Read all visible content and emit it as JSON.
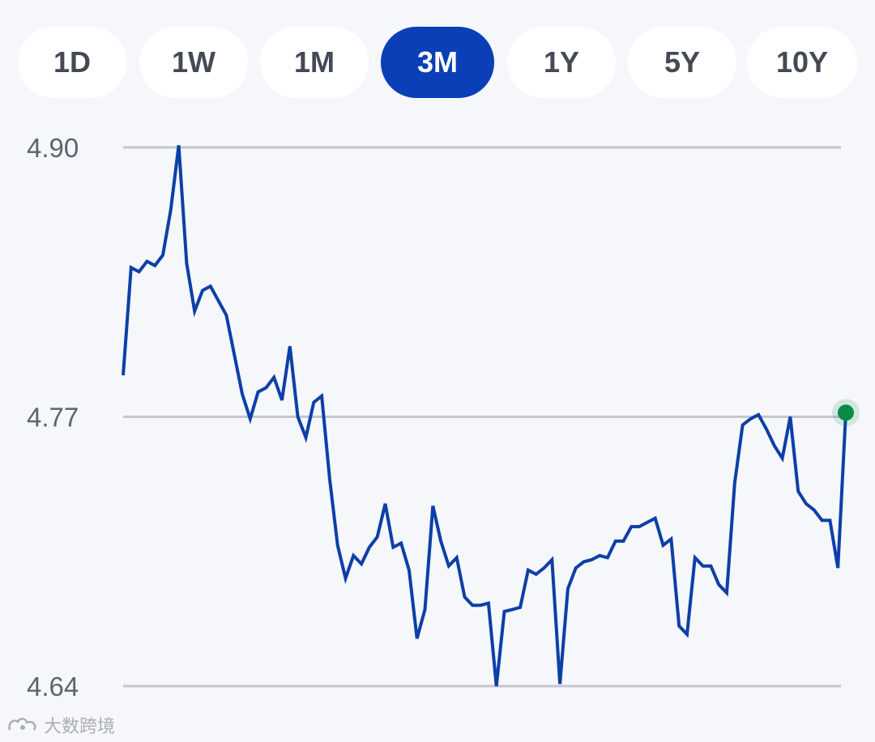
{
  "range_tabs": [
    {
      "label": "1D",
      "active": false
    },
    {
      "label": "1W",
      "active": false
    },
    {
      "label": "1M",
      "active": false
    },
    {
      "label": "3M",
      "active": true
    },
    {
      "label": "1Y",
      "active": false
    },
    {
      "label": "5Y",
      "active": false
    },
    {
      "label": "10Y",
      "active": false
    }
  ],
  "colors": {
    "accent": "#0a3fb8",
    "line": "#0d3fa8",
    "current_dot": "#0b8a4a",
    "gridline": "#c4c7cc",
    "background": "#f5f7fa"
  },
  "chart_data": {
    "type": "line",
    "title": "",
    "xlabel": "",
    "ylabel": "",
    "ylim": [
      4.64,
      4.9
    ],
    "yticks": [
      "4.90",
      "4.77",
      "4.64"
    ],
    "grid": true,
    "last_point_marker": true,
    "values": [
      4.79,
      4.842,
      4.84,
      4.845,
      4.843,
      4.848,
      4.87,
      4.901,
      4.844,
      4.821,
      4.831,
      4.833,
      4.826,
      4.819,
      4.8,
      4.781,
      4.769,
      4.782,
      4.784,
      4.789,
      4.778,
      4.804,
      4.77,
      4.76,
      4.777,
      4.78,
      4.74,
      4.708,
      4.692,
      4.703,
      4.699,
      4.707,
      4.712,
      4.728,
      4.707,
      4.709,
      4.696,
      4.663,
      4.677,
      4.727,
      4.71,
      4.698,
      4.702,
      4.683,
      4.679,
      4.679,
      4.68,
      4.64,
      4.676,
      4.677,
      4.678,
      4.696,
      4.694,
      4.697,
      4.701,
      4.641,
      4.687,
      4.697,
      4.7,
      4.701,
      4.703,
      4.702,
      4.71,
      4.71,
      4.717,
      4.717,
      4.719,
      4.721,
      4.708,
      4.711,
      4.669,
      4.665,
      4.702,
      4.698,
      4.698,
      4.689,
      4.685,
      4.738,
      4.766,
      4.769,
      4.771,
      4.764,
      4.756,
      4.75,
      4.77,
      4.734,
      4.728,
      4.725,
      4.72,
      4.72,
      4.697,
      4.772
    ]
  },
  "watermark": {
    "text": "大数跨境"
  }
}
